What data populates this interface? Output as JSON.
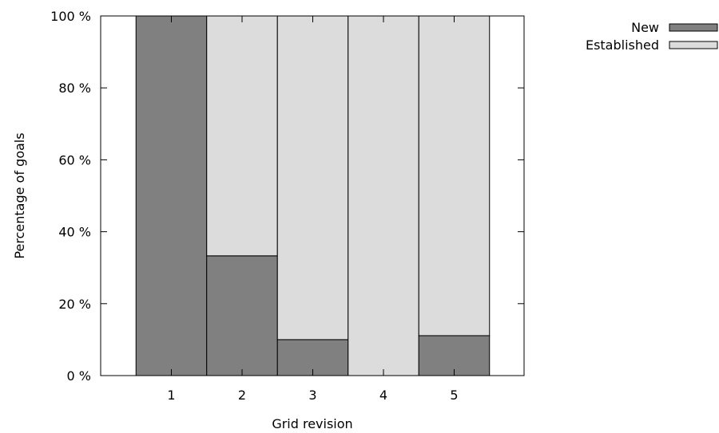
{
  "chart_data": {
    "type": "bar",
    "stacked": true,
    "normalized_percent": true,
    "title": "",
    "xlabel": "Grid revision",
    "ylabel": "Percentage of goals",
    "categories": [
      "1",
      "2",
      "3",
      "4",
      "5"
    ],
    "series": [
      {
        "name": "New",
        "values": [
          100,
          33.3,
          10,
          0,
          11.1
        ],
        "color": "#808080"
      },
      {
        "name": "Established",
        "values": [
          0,
          66.7,
          90,
          100,
          88.9
        ],
        "color": "#dcdcdc"
      }
    ],
    "ylim": [
      0,
      100
    ],
    "yticks": [
      0,
      20,
      40,
      60,
      80,
      100
    ],
    "ytick_labels": [
      "0 %",
      "20 %",
      "40 %",
      "60 %",
      "80 %",
      "100 %"
    ],
    "grid": false,
    "legend_placement": "top-right outside plot"
  }
}
